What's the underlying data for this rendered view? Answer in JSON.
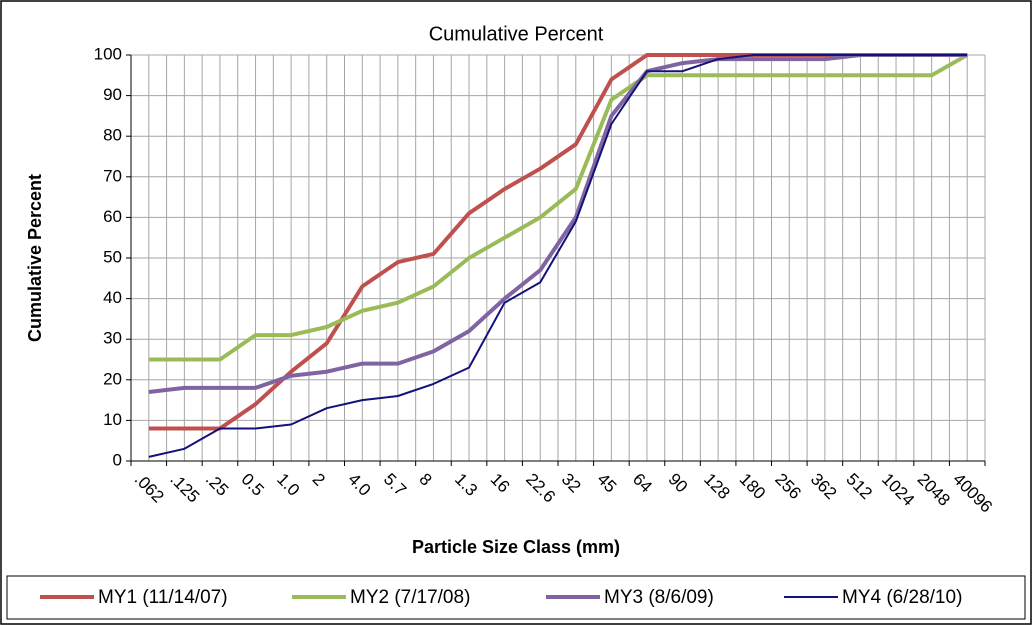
{
  "chart_data": {
    "type": "line",
    "title": "Cumulative Percent",
    "xlabel": "Particle Size Class (mm)",
    "ylabel": "Cumulative Percent",
    "categories": [
      ".062",
      ".125",
      ".25",
      "0.5",
      "1.0",
      "2",
      "4.0",
      "5.7",
      "8",
      "1.3",
      "16",
      "22.6",
      "32",
      "45",
      "64",
      "90",
      "128",
      "180",
      "256",
      "362",
      "512",
      "1024",
      "2048",
      "40096"
    ],
    "series": [
      {
        "name": "MY1 (11/14/07)",
        "color": "#c0504d",
        "values": [
          8,
          8,
          8,
          14,
          22,
          29,
          43,
          49,
          51,
          61,
          67,
          72,
          78,
          94,
          100,
          100,
          100,
          100,
          100,
          100,
          100,
          100,
          100,
          100
        ]
      },
      {
        "name": "MY2 (7/17/08)",
        "color": "#9bbb59",
        "values": [
          25,
          25,
          25,
          31,
          31,
          33,
          37,
          39,
          43,
          50,
          55,
          60,
          67,
          89,
          95,
          95,
          95,
          95,
          95,
          95,
          95,
          95,
          95,
          100
        ]
      },
      {
        "name": "MY3 (8/6/09)",
        "color": "#8064a2",
        "values": [
          17,
          18,
          18,
          18,
          21,
          22,
          24,
          24,
          27,
          32,
          40,
          47,
          60,
          85,
          96,
          98,
          99,
          99,
          99,
          99,
          100,
          100,
          100,
          100
        ]
      },
      {
        "name": "MY4 (6/28/10)",
        "color": "#12127a",
        "values": [
          1,
          3,
          8,
          8,
          9,
          13,
          15,
          16,
          19,
          23,
          39,
          44,
          59,
          83,
          96,
          96,
          99,
          100,
          100,
          100,
          100,
          100,
          100,
          100
        ]
      }
    ],
    "ylim": [
      0,
      100
    ],
    "yticks": [
      0,
      10,
      20,
      30,
      40,
      50,
      60,
      70,
      80,
      90,
      100
    ],
    "grid": true,
    "legend": "bottom"
  }
}
